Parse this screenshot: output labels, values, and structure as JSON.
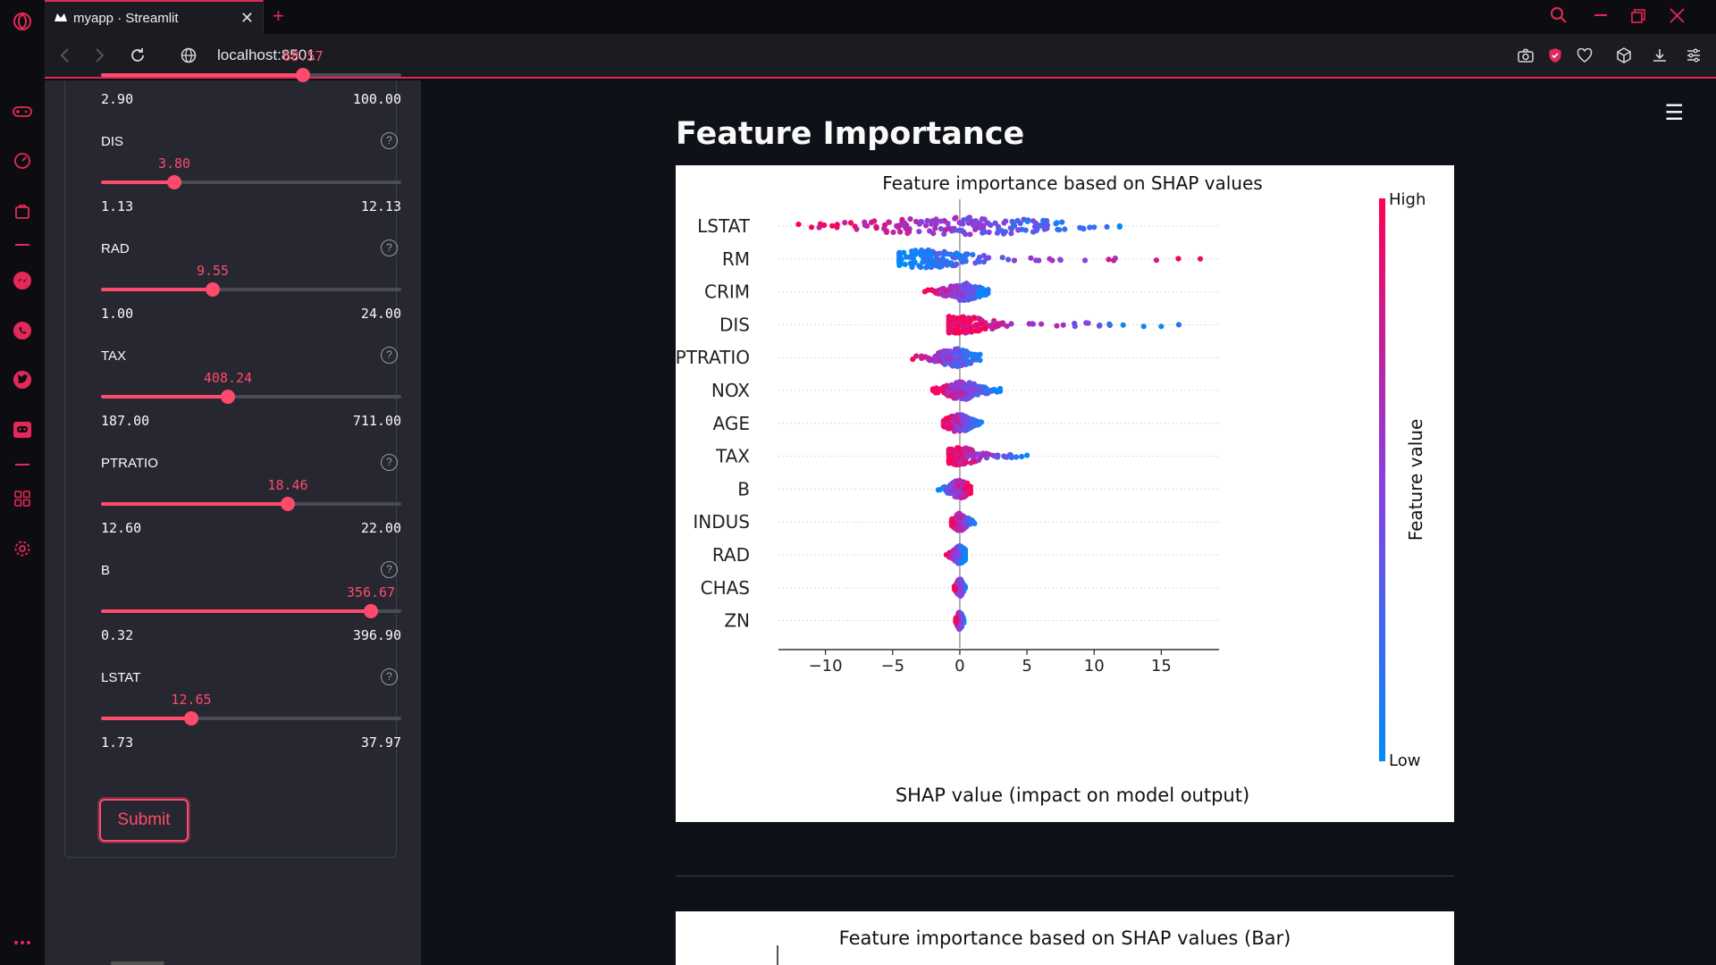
{
  "browser": {
    "tab_title": "myapp · Streamlit",
    "url": "localhost:8501"
  },
  "sidebar": {
    "partial_top": {
      "value": "68.57",
      "min": "2.90",
      "max": "100.00",
      "fraction": 0.673
    },
    "sliders": [
      {
        "label": "DIS",
        "value": "3.80",
        "min": "1.13",
        "max": "12.13",
        "fraction": 0.243
      },
      {
        "label": "RAD",
        "value": "9.55",
        "min": "1.00",
        "max": "24.00",
        "fraction": 0.372
      },
      {
        "label": "TAX",
        "value": "408.24",
        "min": "187.00",
        "max": "711.00",
        "fraction": 0.422
      },
      {
        "label": "PTRATIO",
        "value": "18.46",
        "min": "12.60",
        "max": "22.00",
        "fraction": 0.623
      },
      {
        "label": "B",
        "value": "356.67",
        "min": "0.32",
        "max": "396.90",
        "fraction": 0.898
      },
      {
        "label": "LSTAT",
        "value": "12.65",
        "min": "1.73",
        "max": "37.97",
        "fraction": 0.301
      }
    ],
    "help_glyph": "?",
    "submit_label": "Submit"
  },
  "main": {
    "title": "Feature Importance",
    "menu_glyph": "☰"
  },
  "colors": {
    "accent": "#ff4b6b",
    "low": "#008bfb",
    "high": "#ff0052"
  },
  "chart_data": [
    {
      "type": "scatter",
      "title": "Feature importance based on SHAP values",
      "xlabel": "SHAP value (impact on model output)",
      "xlim": [
        -13.5,
        19.3
      ],
      "xticks": [
        "−10",
        "−5",
        "0",
        "5",
        "10",
        "15"
      ],
      "xtick_values": [
        -10,
        -5,
        0,
        5,
        10,
        15
      ],
      "features": [
        "LSTAT",
        "RM",
        "CRIM",
        "DIS",
        "PTRATIO",
        "NOX",
        "AGE",
        "TAX",
        "B",
        "INDUS",
        "RAD",
        "CHAS",
        "ZN"
      ],
      "colorbar_label": "Feature value",
      "colorbar_high": "High",
      "colorbar_low": "Low",
      "series": [
        {
          "feature": "LSTAT",
          "min": -12.0,
          "max": 11.9,
          "center": 0.0,
          "spread": 5.0
        },
        {
          "feature": "RM",
          "min": -4.5,
          "max": 17.9,
          "center": -2.5,
          "spread": 2.2
        },
        {
          "feature": "CRIM",
          "min": -2.6,
          "max": 2.1,
          "center": 0.3,
          "spread": 0.8
        },
        {
          "feature": "DIS",
          "min": -0.8,
          "max": 16.3,
          "center": 0.0,
          "spread": 1.5
        },
        {
          "feature": "PTRATIO",
          "min": -3.5,
          "max": 1.5,
          "center": -0.3,
          "spread": 0.9
        },
        {
          "feature": "NOX",
          "min": -2.0,
          "max": 3.0,
          "center": 0.2,
          "spread": 0.9
        },
        {
          "feature": "AGE",
          "min": -1.2,
          "max": 1.6,
          "center": -0.1,
          "spread": 0.6
        },
        {
          "feature": "TAX",
          "min": -0.8,
          "max": 5.0,
          "center": 0.0,
          "spread": 0.9
        },
        {
          "feature": "B",
          "min": -1.6,
          "max": 0.8,
          "center": 0.0,
          "spread": 0.5
        },
        {
          "feature": "INDUS",
          "min": -0.6,
          "max": 1.1,
          "center": 0.0,
          "spread": 0.35
        },
        {
          "feature": "RAD",
          "min": -1.0,
          "max": 0.4,
          "center": 0.0,
          "spread": 0.3
        },
        {
          "feature": "CHAS",
          "min": -0.4,
          "max": 0.4,
          "center": 0.0,
          "spread": 0.15
        },
        {
          "feature": "ZN",
          "min": -0.3,
          "max": 0.3,
          "center": 0.0,
          "spread": 0.12
        }
      ]
    },
    {
      "type": "bar",
      "title": "Feature importance based on SHAP values (Bar)"
    }
  ]
}
